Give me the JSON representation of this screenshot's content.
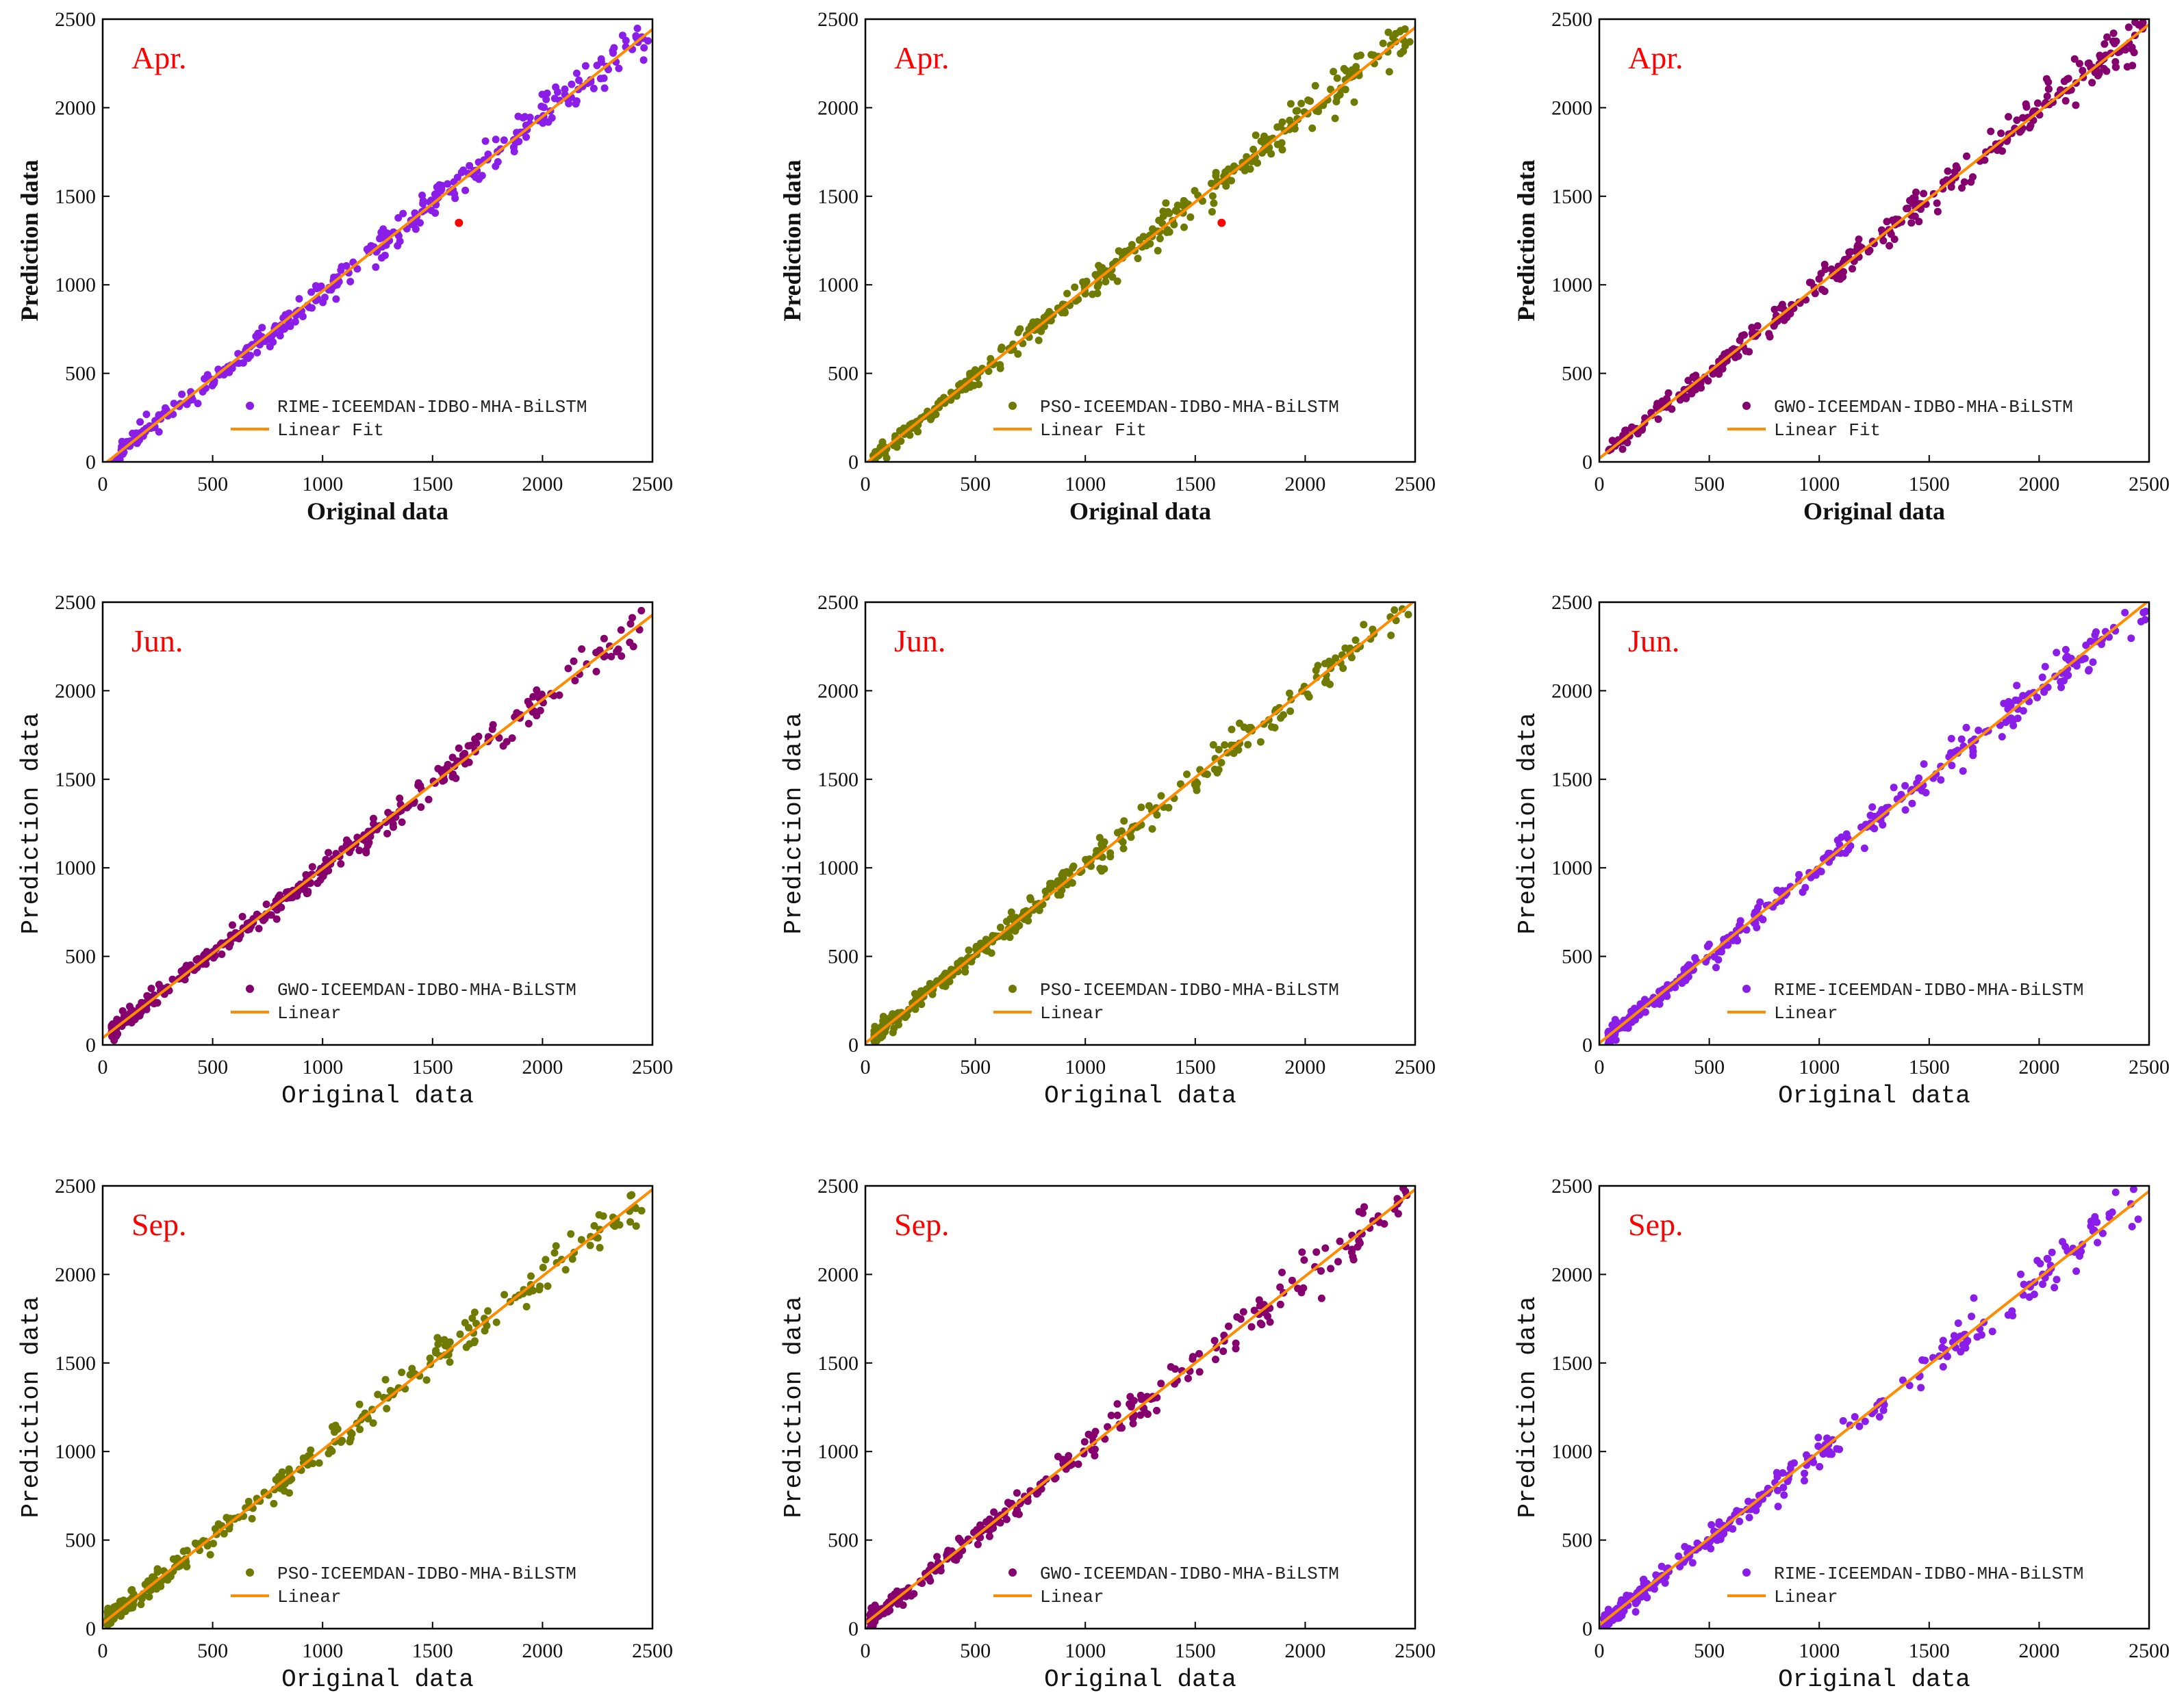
{
  "colors": {
    "purple": "#8a1de8",
    "olive": "#6f7a00",
    "magenta": "#85006e",
    "fit_line": "#ff8c00",
    "month_label": "#ff0000",
    "outlier": "#ff0000"
  },
  "chart_data": [
    {
      "type": "scatter",
      "row": 0,
      "col": 0,
      "month": "Apr.",
      "series_label": "RIME-ICEEMDAN-IDBO-MHA-BiLSTM",
      "fit_label": "Linear Fit",
      "point_color": "purple",
      "xlabel": "Original data",
      "ylabel": "Prediction data",
      "label_style": "serif",
      "xlim": [
        0,
        2500
      ],
      "ylim": [
        0,
        2500
      ],
      "ticks": [
        0,
        500,
        1000,
        1500,
        2000,
        2500
      ],
      "n_points": 330,
      "x_range": [
        30,
        2480
      ],
      "noise_sd": 45,
      "slope": 0.985,
      "intercept": -20,
      "outlier": [
        1620,
        1350
      ],
      "seed": 11
    },
    {
      "type": "scatter",
      "row": 0,
      "col": 1,
      "month": "Apr.",
      "series_label": "PSO-ICEEMDAN-IDBO-MHA-BiLSTM",
      "fit_label": "Linear Fit",
      "point_color": "olive",
      "xlabel": "Original data",
      "ylabel": "Prediction data",
      "label_style": "serif",
      "xlim": [
        0,
        2500
      ],
      "ylim": [
        0,
        2500
      ],
      "ticks": [
        0,
        500,
        1000,
        1500,
        2000,
        2500
      ],
      "n_points": 330,
      "x_range": [
        30,
        2480
      ],
      "noise_sd": 45,
      "slope": 0.985,
      "intercept": -10,
      "outlier": [
        1620,
        1350
      ],
      "seed": 12
    },
    {
      "type": "scatter",
      "row": 0,
      "col": 2,
      "month": "Apr.",
      "series_label": "GWO-ICEEMDAN-IDBO-MHA-BiLSTM",
      "fit_label": "Linear Fit",
      "point_color": "magenta",
      "xlabel": "Original data",
      "ylabel": "Prediction data",
      "label_style": "serif",
      "xlim": [
        0,
        2500
      ],
      "ylim": [
        0,
        2500
      ],
      "ticks": [
        0,
        500,
        1000,
        1500,
        2000,
        2500
      ],
      "n_points": 330,
      "x_range": [
        30,
        2480
      ],
      "noise_sd": 45,
      "slope": 0.98,
      "intercept": 20,
      "seed": 13
    },
    {
      "type": "scatter",
      "row": 1,
      "col": 0,
      "month": "Jun.",
      "series_label": "GWO-ICEEMDAN-IDBO-MHA-BiLSTM",
      "fit_label": "Linear",
      "point_color": "magenta",
      "xlabel": "Original data",
      "ylabel": "Prediction data",
      "label_style": "mono",
      "xlim": [
        0,
        2500
      ],
      "ylim": [
        0,
        2500
      ],
      "ticks": [
        0,
        500,
        1000,
        1500,
        2000,
        2500
      ],
      "n_points": 340,
      "x_range": [
        40,
        2490
      ],
      "noise_sd": 40,
      "slope": 0.955,
      "intercept": 40,
      "skew": "dense-low",
      "seed": 21
    },
    {
      "type": "scatter",
      "row": 1,
      "col": 1,
      "month": "Jun.",
      "series_label": "PSO-ICEEMDAN-IDBO-MHA-BiLSTM",
      "fit_label": "Linear",
      "point_color": "olive",
      "xlabel": "Original data",
      "ylabel": "Prediction data",
      "label_style": "mono",
      "xlim": [
        0,
        2500
      ],
      "ylim": [
        0,
        2500
      ],
      "ticks": [
        0,
        500,
        1000,
        1500,
        2000,
        2500
      ],
      "n_points": 340,
      "x_range": [
        40,
        2490
      ],
      "noise_sd": 40,
      "slope": 1.0,
      "intercept": 10,
      "skew": "dense-low",
      "seed": 22
    },
    {
      "type": "scatter",
      "row": 1,
      "col": 2,
      "month": "Jun.",
      "series_label": "RIME-ICEEMDAN-IDBO-MHA-BiLSTM",
      "fit_label": "Linear",
      "point_color": "purple",
      "xlabel": "Original data",
      "ylabel": "Prediction data",
      "label_style": "mono",
      "xlim": [
        0,
        2500
      ],
      "ylim": [
        0,
        2500
      ],
      "ticks": [
        0,
        500,
        1000,
        1500,
        2000,
        2500
      ],
      "n_points": 340,
      "x_range": [
        40,
        2490
      ],
      "noise_sd": 40,
      "slope": 1.0,
      "intercept": 10,
      "skew": "dense-low",
      "seed": 23
    },
    {
      "type": "scatter",
      "row": 2,
      "col": 0,
      "month": "Sep.",
      "series_label": "PSO-ICEEMDAN-IDBO-MHA-BiLSTM",
      "fit_label": "Linear",
      "point_color": "olive",
      "xlabel": "Original data",
      "ylabel": "Prediction data",
      "label_style": "mono",
      "xlim": [
        0,
        2500
      ],
      "ylim": [
        0,
        2500
      ],
      "ticks": [
        0,
        500,
        1000,
        1500,
        2000,
        2500
      ],
      "n_points": 300,
      "x_range": [
        20,
        2470
      ],
      "noise_sd": 50,
      "slope": 0.98,
      "intercept": 30,
      "skew": "dense-low",
      "seed": 31
    },
    {
      "type": "scatter",
      "row": 2,
      "col": 1,
      "month": "Sep.",
      "series_label": "GWO-ICEEMDAN-IDBO-MHA-BiLSTM",
      "fit_label": "Linear",
      "point_color": "magenta",
      "xlabel": "Original data",
      "ylabel": "Prediction data",
      "label_style": "mono",
      "xlim": [
        0,
        2500
      ],
      "ylim": [
        0,
        2500
      ],
      "ticks": [
        0,
        500,
        1000,
        1500,
        2000,
        2500
      ],
      "n_points": 300,
      "x_range": [
        20,
        2470
      ],
      "noise_sd": 50,
      "slope": 0.98,
      "intercept": 30,
      "skew": "dense-low",
      "seed": 32
    },
    {
      "type": "scatter",
      "row": 2,
      "col": 2,
      "month": "Sep.",
      "series_label": "RIME-ICEEMDAN-IDBO-MHA-BiLSTM",
      "fit_label": "Linear",
      "point_color": "purple",
      "xlabel": "Original data",
      "ylabel": "Prediction data",
      "label_style": "mono",
      "xlim": [
        0,
        2500
      ],
      "ylim": [
        0,
        2500
      ],
      "ticks": [
        0,
        500,
        1000,
        1500,
        2000,
        2500
      ],
      "n_points": 300,
      "x_range": [
        20,
        2470
      ],
      "noise_sd": 50,
      "slope": 0.98,
      "intercept": 20,
      "skew": "dense-low",
      "seed": 33
    }
  ]
}
